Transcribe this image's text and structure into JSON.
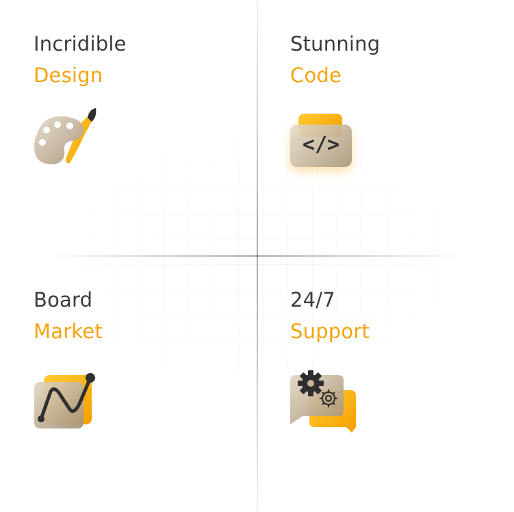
{
  "features": [
    {
      "line1": "Incridible",
      "line2": "Design",
      "icon": "palette-icon"
    },
    {
      "line1": "Stunning",
      "line2": "Code",
      "icon": "code-icon"
    },
    {
      "line1": "Board",
      "line2": "Market",
      "icon": "chart-icon"
    },
    {
      "line1": "24/7",
      "line2": "Support",
      "icon": "support-icon"
    }
  ],
  "code_glyph": "</>",
  "colors": {
    "accent": "#f5a30e",
    "text": "#3b3b3b",
    "glass": "#c9b79a"
  }
}
